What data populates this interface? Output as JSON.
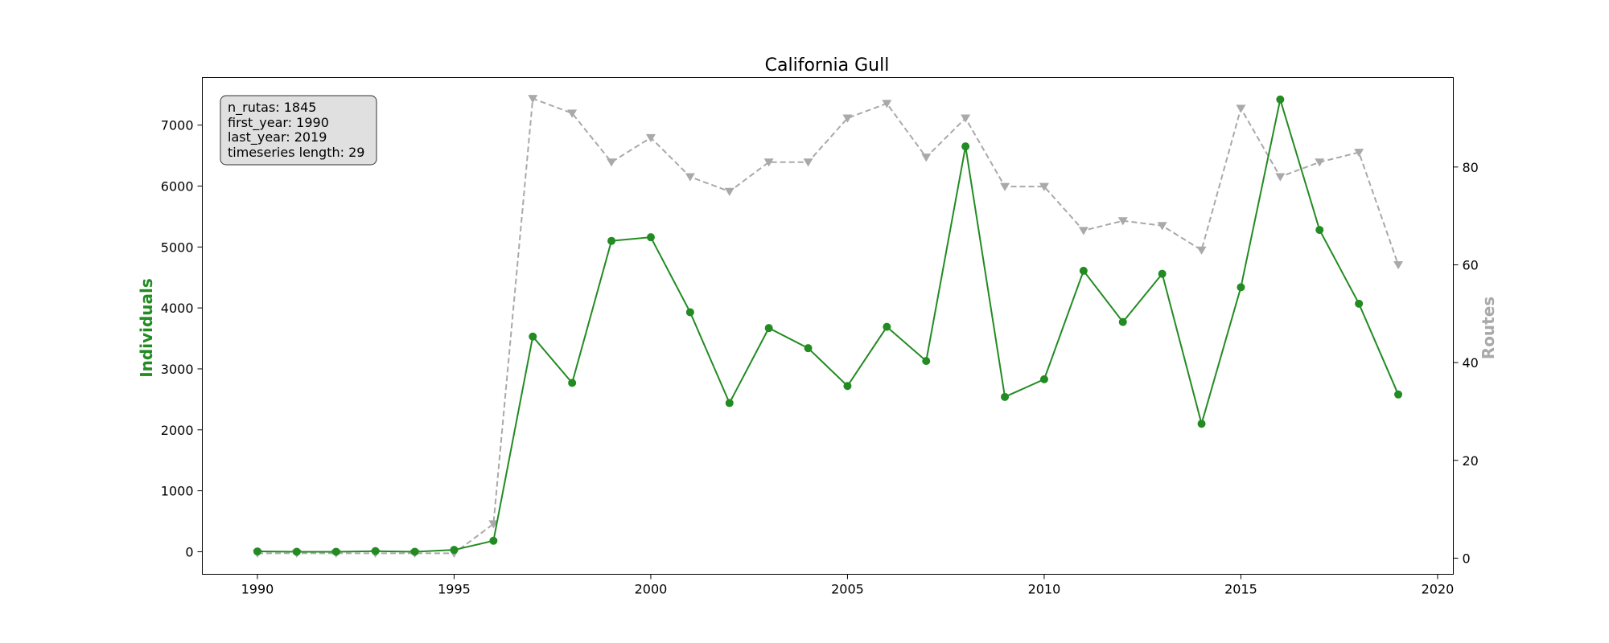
{
  "chart_data": {
    "type": "line",
    "title": "California Gull",
    "xlabel": "",
    "ylabel_left": "Individuals",
    "ylabel_right": "Routes",
    "xlim": [
      1988.6,
      2020.4
    ],
    "ylim_left": [
      -370,
      7780
    ],
    "ylim_right": [
      -3.3,
      98.3
    ],
    "x_ticks": [
      1990,
      1995,
      2000,
      2005,
      2010,
      2015,
      2020
    ],
    "y_ticks_left": [
      0,
      1000,
      2000,
      3000,
      4000,
      5000,
      6000,
      7000
    ],
    "y_ticks_right": [
      0,
      20,
      40,
      60,
      80
    ],
    "grid": false,
    "colors": {
      "individuals": "#228B22",
      "routes": "#A9A9A9"
    },
    "x": [
      1990,
      1991,
      1992,
      1993,
      1994,
      1995,
      1996,
      1997,
      1998,
      1999,
      2000,
      2001,
      2002,
      2003,
      2004,
      2005,
      2006,
      2007,
      2008,
      2009,
      2010,
      2011,
      2012,
      2013,
      2014,
      2015,
      2016,
      2017,
      2018,
      2019
    ],
    "series": [
      {
        "axis": "left",
        "values": [
          5,
          0,
          0,
          10,
          0,
          30,
          180,
          3530,
          2770,
          5100,
          5160,
          3930,
          2440,
          3670,
          3340,
          2720,
          3690,
          3130,
          6650,
          2540,
          2830,
          4610,
          3770,
          4560,
          2100,
          4340,
          7420,
          5280,
          4070,
          2580
        ]
      },
      {
        "axis": "right",
        "values": [
          1,
          1,
          1,
          1,
          1,
          1,
          7,
          94,
          91,
          81,
          86,
          78,
          75,
          81,
          81,
          90,
          93,
          82,
          90,
          76,
          76,
          67,
          69,
          68,
          63,
          92,
          78,
          81,
          83,
          60
        ]
      }
    ],
    "info_box": {
      "lines": [
        "n_rutas: 1845",
        "first_year: 1990",
        "last_year: 2019",
        "timeseries length: 29"
      ]
    }
  }
}
